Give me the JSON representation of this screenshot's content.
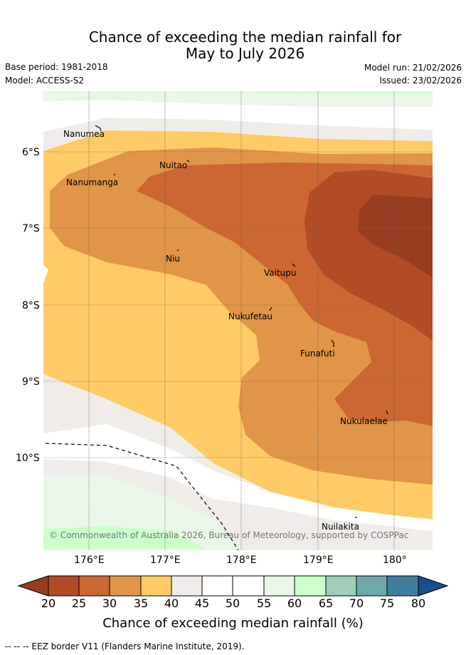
{
  "title": {
    "line1": "Chance of exceeding the median rainfall for",
    "line2": "May to July 2026"
  },
  "meta": {
    "base_period": "Base period: 1981-2018",
    "model": "Model: ACCESS-S2",
    "model_run": "Model run: 21/02/2026",
    "issued": "Issued: 23/02/2026"
  },
  "map": {
    "places": [
      {
        "name": "Nanumea"
      },
      {
        "name": "Nuitao"
      },
      {
        "name": "Nanumanga"
      },
      {
        "name": "Niu"
      },
      {
        "name": "Vaitupu"
      },
      {
        "name": "Nukufetau"
      },
      {
        "name": "Funafuti"
      },
      {
        "name": "Nukulaelae"
      },
      {
        "name": "Nuilakita"
      }
    ],
    "lat_ticks": [
      "6°S",
      "7°S",
      "8°S",
      "9°S",
      "10°S"
    ],
    "lon_ticks": [
      "176°E",
      "177°E",
      "178°E",
      "179°E",
      "180°"
    ],
    "copyright": "© Commonwealth of Australia 2026, Bureau of Meteorology, supported by COSPPac",
    "colors": {
      "c20": "#b34b26",
      "c25": "#cc6633",
      "c30": "#e09548",
      "c35": "#fecb66",
      "c40": "#f0ede9",
      "c45": "#ffffff",
      "c50": "#ffffff",
      "c55": "#eaf6e8",
      "c60": "#ccffcc",
      "c65": "#9ecdba",
      "c70": "#6fa8a9",
      "c75": "#407e9f",
      "cmin": "#993d22",
      "cmax": "#1a4d8c"
    }
  },
  "colorbar": {
    "labels": [
      "20",
      "25",
      "30",
      "35",
      "40",
      "45",
      "50",
      "55",
      "60",
      "65",
      "70",
      "75",
      "80"
    ],
    "title": "Chance of exceeding median rainfall (%)"
  },
  "footer": {
    "eez_note": "--  --  -- EEZ border V11 (Flanders Marine Institute, 2019)."
  }
}
